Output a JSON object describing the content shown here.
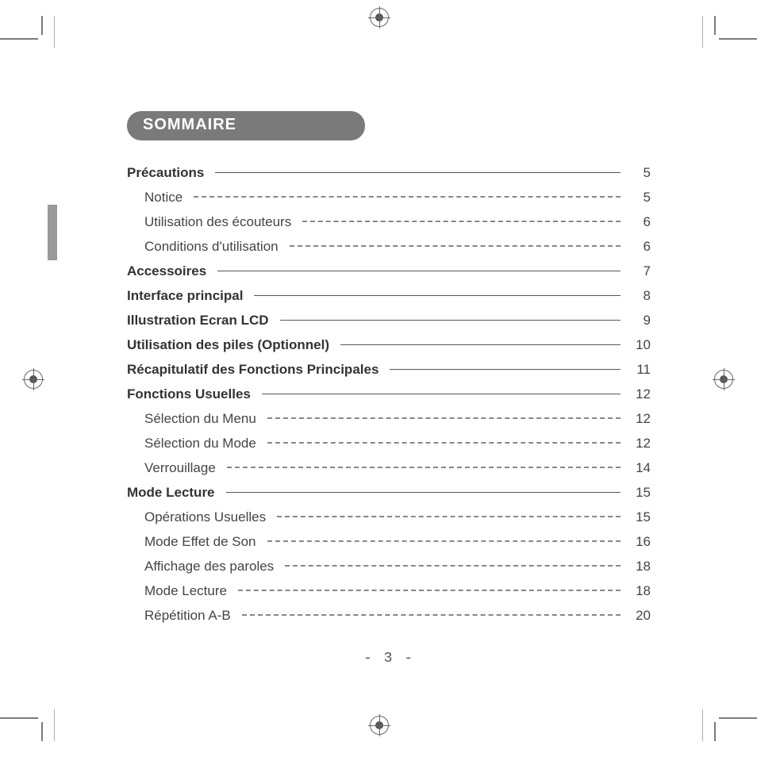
{
  "title": "SOMMAIRE",
  "page_number": "- 3 -",
  "colors": {
    "pill_bg": "#7a7a7a",
    "pill_text": "#ffffff",
    "text": "#444444",
    "leader_solid": "#555555",
    "leader_dashed": "#888888",
    "background": "#ffffff"
  },
  "toc": [
    {
      "type": "section",
      "label": "Précautions",
      "page": "5"
    },
    {
      "type": "sub",
      "label": "Notice",
      "page": "5"
    },
    {
      "type": "sub",
      "label": "Utilisation des écouteurs",
      "page": "6"
    },
    {
      "type": "sub",
      "label": "Conditions d'utilisation",
      "page": "6"
    },
    {
      "type": "section",
      "label": "Accessoires",
      "page": "7"
    },
    {
      "type": "section",
      "label": "Interface principal",
      "page": "8"
    },
    {
      "type": "section",
      "label": "Illustration Ecran LCD",
      "page": "9"
    },
    {
      "type": "section",
      "label": "Utilisation des piles (Optionnel)",
      "page": "10"
    },
    {
      "type": "section",
      "label": "Récapitulatif des Fonctions Principales",
      "page": "11"
    },
    {
      "type": "section",
      "label": "Fonctions Usuelles",
      "page": "12"
    },
    {
      "type": "sub",
      "label": "Sélection du Menu",
      "page": "12"
    },
    {
      "type": "sub",
      "label": "Sélection du Mode",
      "page": "12"
    },
    {
      "type": "sub",
      "label": "Verrouillage",
      "page": "14"
    },
    {
      "type": "section",
      "label": "Mode Lecture",
      "page": "15"
    },
    {
      "type": "sub",
      "label": "Opérations Usuelles",
      "page": "15"
    },
    {
      "type": "sub",
      "label": "Mode Effet de Son",
      "page": "16"
    },
    {
      "type": "sub",
      "label": "Affichage des paroles",
      "page": "18"
    },
    {
      "type": "sub",
      "label": "Mode Lecture",
      "page": "18"
    },
    {
      "type": "sub",
      "label": "Répétition A-B",
      "page": "20"
    }
  ]
}
